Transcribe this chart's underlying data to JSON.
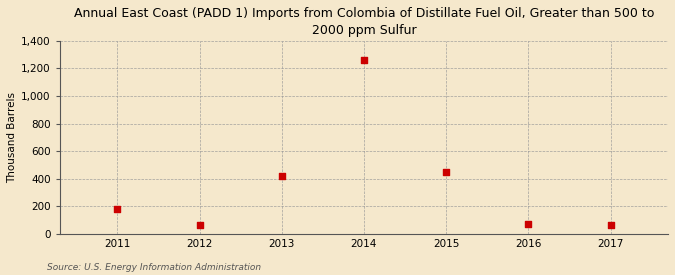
{
  "title": "Annual East Coast (PADD 1) Imports from Colombia of Distillate Fuel Oil, Greater than 500 to\n2000 ppm Sulfur",
  "ylabel": "Thousand Barrels",
  "source": "Source: U.S. Energy Information Administration",
  "x": [
    2011,
    2012,
    2013,
    2014,
    2015,
    2016,
    2017
  ],
  "y": [
    182,
    63,
    420,
    1260,
    450,
    70,
    68
  ],
  "marker_color": "#cc0000",
  "marker_size": 4,
  "xlim": [
    2010.3,
    2017.7
  ],
  "ylim": [
    0,
    1400
  ],
  "yticks": [
    0,
    200,
    400,
    600,
    800,
    1000,
    1200,
    1400
  ],
  "ytick_labels": [
    "0",
    "200",
    "400",
    "600",
    "800",
    "1,000",
    "1,200",
    "1,400"
  ],
  "xticks": [
    2011,
    2012,
    2013,
    2014,
    2015,
    2016,
    2017
  ],
  "background_color": "#f5e8cc",
  "plot_bg_color": "#f5e8cc",
  "grid_color": "#999999",
  "title_fontsize": 9,
  "axis_label_fontsize": 7.5,
  "tick_fontsize": 7.5,
  "source_fontsize": 6.5
}
